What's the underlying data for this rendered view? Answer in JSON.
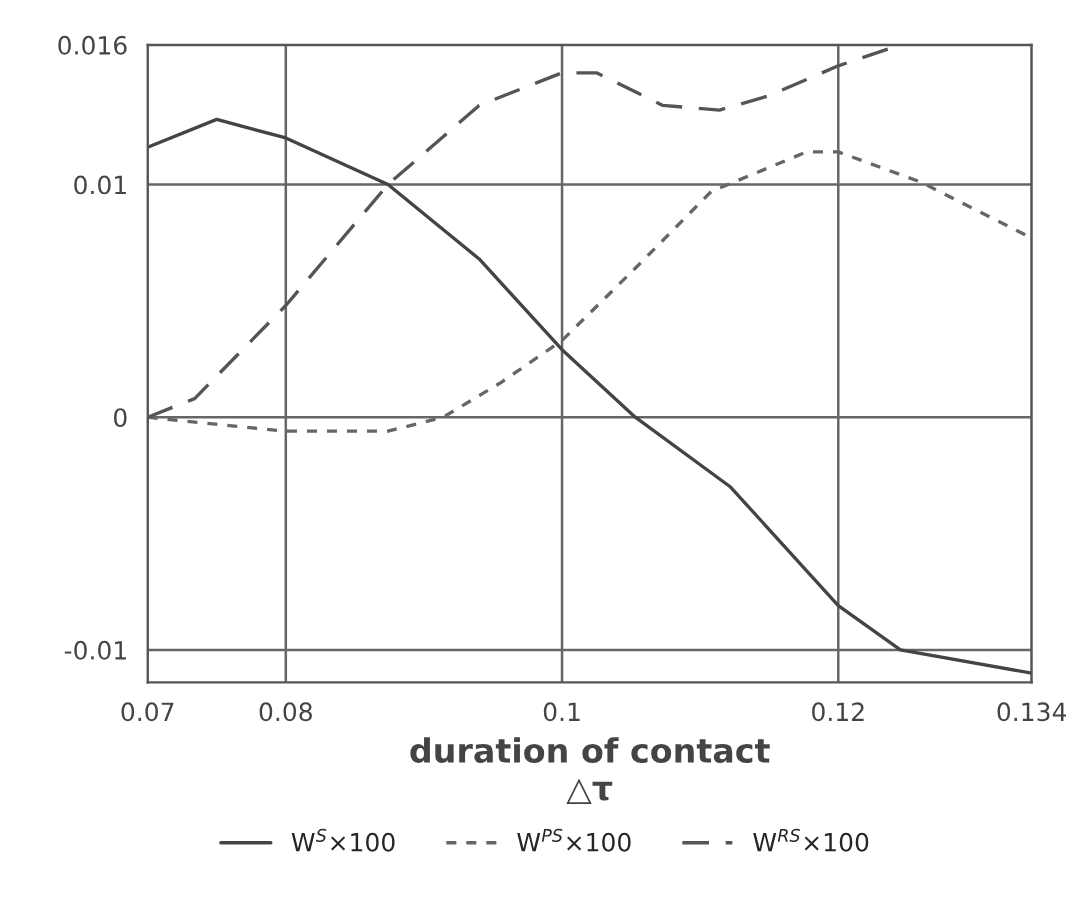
{
  "chart_data": {
    "type": "line",
    "xlabel": "duration of contact\n△τ",
    "series": [
      {
        "name": "W$^{S}$×100",
        "color": "#444444",
        "line_style": "solid",
        "x": [
          0.07,
          0.075,
          0.08,
          0.0874,
          0.094,
          0.1,
          0.1053,
          0.1122,
          0.12,
          0.1245,
          0.134
        ],
        "values": [
          0.0116,
          0.0128,
          0.012,
          0.01,
          0.0068,
          0.0029,
          0.0,
          -0.003,
          -0.0081,
          -0.01,
          -0.011
        ]
      },
      {
        "name": "W$^{PS}$×100",
        "color": "#666666",
        "line_style": "dotted",
        "x": [
          0.07,
          0.0749,
          0.08,
          0.0874,
          0.0914,
          0.0956,
          0.1,
          0.1053,
          0.1108,
          0.1177,
          0.12,
          0.126,
          0.134
        ],
        "values": [
          0.0,
          -0.0003,
          -0.0006,
          -0.0006,
          0.0,
          0.0015,
          0.0033,
          0.0064,
          0.0097,
          0.0114,
          0.0114,
          0.0101,
          0.0077
        ]
      },
      {
        "name": "W$^{RS}$×100",
        "color": "#555555",
        "line_style": "dashed",
        "x": [
          0.07,
          0.0734,
          0.08,
          0.0874,
          0.094,
          0.1,
          0.1025,
          0.1073,
          0.1114,
          0.1149,
          0.12,
          0.1245
        ],
        "values": [
          0.0,
          0.0008,
          0.0048,
          0.01,
          0.0134,
          0.0148,
          0.0148,
          0.0134,
          0.0132,
          0.0138,
          0.0151,
          0.016
        ]
      }
    ],
    "xlim": [
      0.07,
      0.134
    ],
    "xticks": [
      0.07,
      0.08,
      0.1,
      0.12,
      0.134
    ],
    "ylim": [
      -0.0114,
      0.016
    ],
    "yticks": [
      -0.01,
      0,
      0.01,
      0.016
    ],
    "grid": true,
    "legend": "bottom"
  }
}
